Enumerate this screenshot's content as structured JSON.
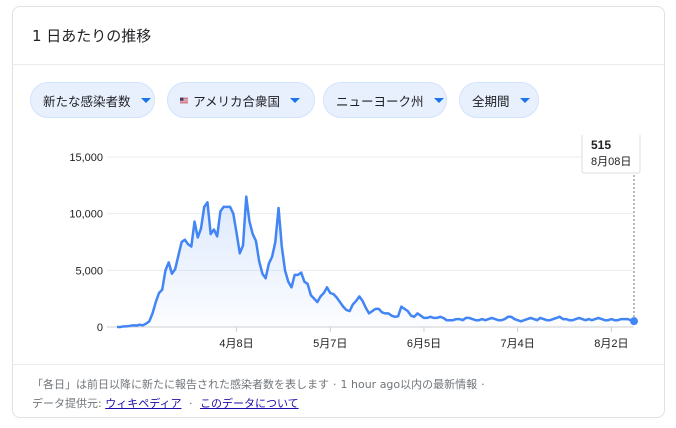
{
  "header": {
    "title": "1 日あたりの推移"
  },
  "filters": [
    {
      "label": "新たな感染者数",
      "icon": "caret-down-icon"
    },
    {
      "label": "アメリカ合衆国",
      "icon": "us-flag-icon"
    },
    {
      "label": "ニューヨーク州",
      "icon": "caret-down-icon"
    },
    {
      "label": "全期間",
      "icon": "caret-down-icon"
    }
  ],
  "tooltip": {
    "value": "515",
    "date": "8月08日"
  },
  "chart_data": {
    "type": "area",
    "title": "",
    "xlabel": "",
    "ylabel": "",
    "ylim": [
      0,
      15000
    ],
    "yticks": [
      "15,000",
      "10,000",
      "5,000",
      "0"
    ],
    "ytick_values": [
      15000,
      10000,
      5000,
      0
    ],
    "xticks": [
      "4月8日",
      "5月7日",
      "6月5日",
      "7月4日",
      "8月2日"
    ],
    "xtick_index": [
      37,
      66,
      95,
      124,
      153
    ],
    "grid": true,
    "line_color": "#4285f4",
    "series": [
      {
        "name": "",
        "values": [
          0,
          0,
          50,
          60,
          100,
          150,
          120,
          200,
          150,
          300,
          500,
          1200,
          2200,
          3000,
          3300,
          5000,
          5700,
          4700,
          5100,
          6300,
          7500,
          7700,
          7300,
          7100,
          9300,
          7900,
          8700,
          10600,
          11000,
          8200,
          8600,
          8000,
          10200,
          10600,
          10600,
          10600,
          10000,
          8300,
          6500,
          7200,
          11500,
          9300,
          8200,
          7600,
          5800,
          4700,
          4300,
          5600,
          6200,
          7500,
          10500,
          7100,
          5000,
          4000,
          3500,
          4600,
          4600,
          4800,
          4000,
          3800,
          2800,
          2500,
          2200,
          2700,
          3000,
          3500,
          3000,
          2900,
          2600,
          2200,
          1800,
          1500,
          1400,
          2000,
          2300,
          2700,
          2300,
          1700,
          1200,
          1400,
          1600,
          1600,
          1300,
          1200,
          1200,
          1000,
          900,
          950,
          1800,
          1600,
          1400,
          1000,
          900,
          1200,
          1000,
          800,
          800,
          900,
          800,
          800,
          900,
          800,
          600,
          600,
          600,
          700,
          700,
          600,
          800,
          800,
          700,
          600,
          600,
          700,
          600,
          700,
          800,
          700,
          600,
          600,
          700,
          900,
          900,
          700,
          600,
          500,
          600,
          700,
          800,
          700,
          600,
          800,
          700,
          600,
          600,
          700,
          800,
          900,
          700,
          700,
          600,
          600,
          700,
          800,
          700,
          600,
          700,
          600,
          700,
          800,
          700,
          600,
          600,
          700,
          600,
          600,
          700,
          700,
          700,
          600,
          515
        ]
      }
    ]
  },
  "footer": {
    "line1": "「各日」は前日以降に新たに報告された感染者数を表します",
    "sep": "·",
    "line1b": "1 hour ago以内の最新情報",
    "source_label": "データ提供元:",
    "source_link": "ウィキペディア",
    "about_link": "このデータについて"
  }
}
